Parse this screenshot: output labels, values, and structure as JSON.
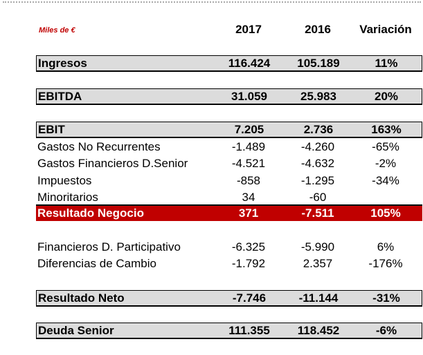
{
  "table": {
    "units_label": "Miles de €",
    "headers": [
      "2017",
      "2016",
      "Variación"
    ],
    "rows": [
      {
        "label": "Ingresos",
        "v2017": "116.424",
        "v2016": "105.189",
        "variacion": "11%"
      },
      {
        "label": "EBITDA",
        "v2017": "31.059",
        "v2016": "25.983",
        "variacion": "20%"
      },
      {
        "label": "EBIT",
        "v2017": "7.205",
        "v2016": "2.736",
        "variacion": "163%"
      },
      {
        "label": "Gastos No Recurrentes",
        "v2017": "-1.489",
        "v2016": "-4.260",
        "variacion": "-65%"
      },
      {
        "label": "Gastos Financieros D.Senior",
        "v2017": "-4.521",
        "v2016": "-4.632",
        "variacion": "-2%"
      },
      {
        "label": "Impuestos",
        "v2017": "-858",
        "v2016": "-1.295",
        "variacion": "-34%"
      },
      {
        "label": "Minoritarios",
        "v2017": "34",
        "v2016": "-60",
        "variacion": ""
      },
      {
        "label": "Resultado Negocio",
        "v2017": "371",
        "v2016": "-7.511",
        "variacion": "105%"
      },
      {
        "label": "Financieros D. Participativo",
        "v2017": "-6.325",
        "v2016": "-5.990",
        "variacion": "6%"
      },
      {
        "label": "Diferencias de Cambio",
        "v2017": "-1.792",
        "v2016": "2.357",
        "variacion": "-176%"
      },
      {
        "label": "Resultado Neto",
        "v2017": "-7.746",
        "v2016": "-11.144",
        "variacion": "-31%"
      },
      {
        "label": "Deuda Senior",
        "v2017": "111.355",
        "v2016": "118.452",
        "variacion": "-6%"
      }
    ]
  },
  "colors": {
    "highlight_row": "#c00000",
    "summary_row": "#dcdcdc",
    "units_label": "#c00000"
  }
}
